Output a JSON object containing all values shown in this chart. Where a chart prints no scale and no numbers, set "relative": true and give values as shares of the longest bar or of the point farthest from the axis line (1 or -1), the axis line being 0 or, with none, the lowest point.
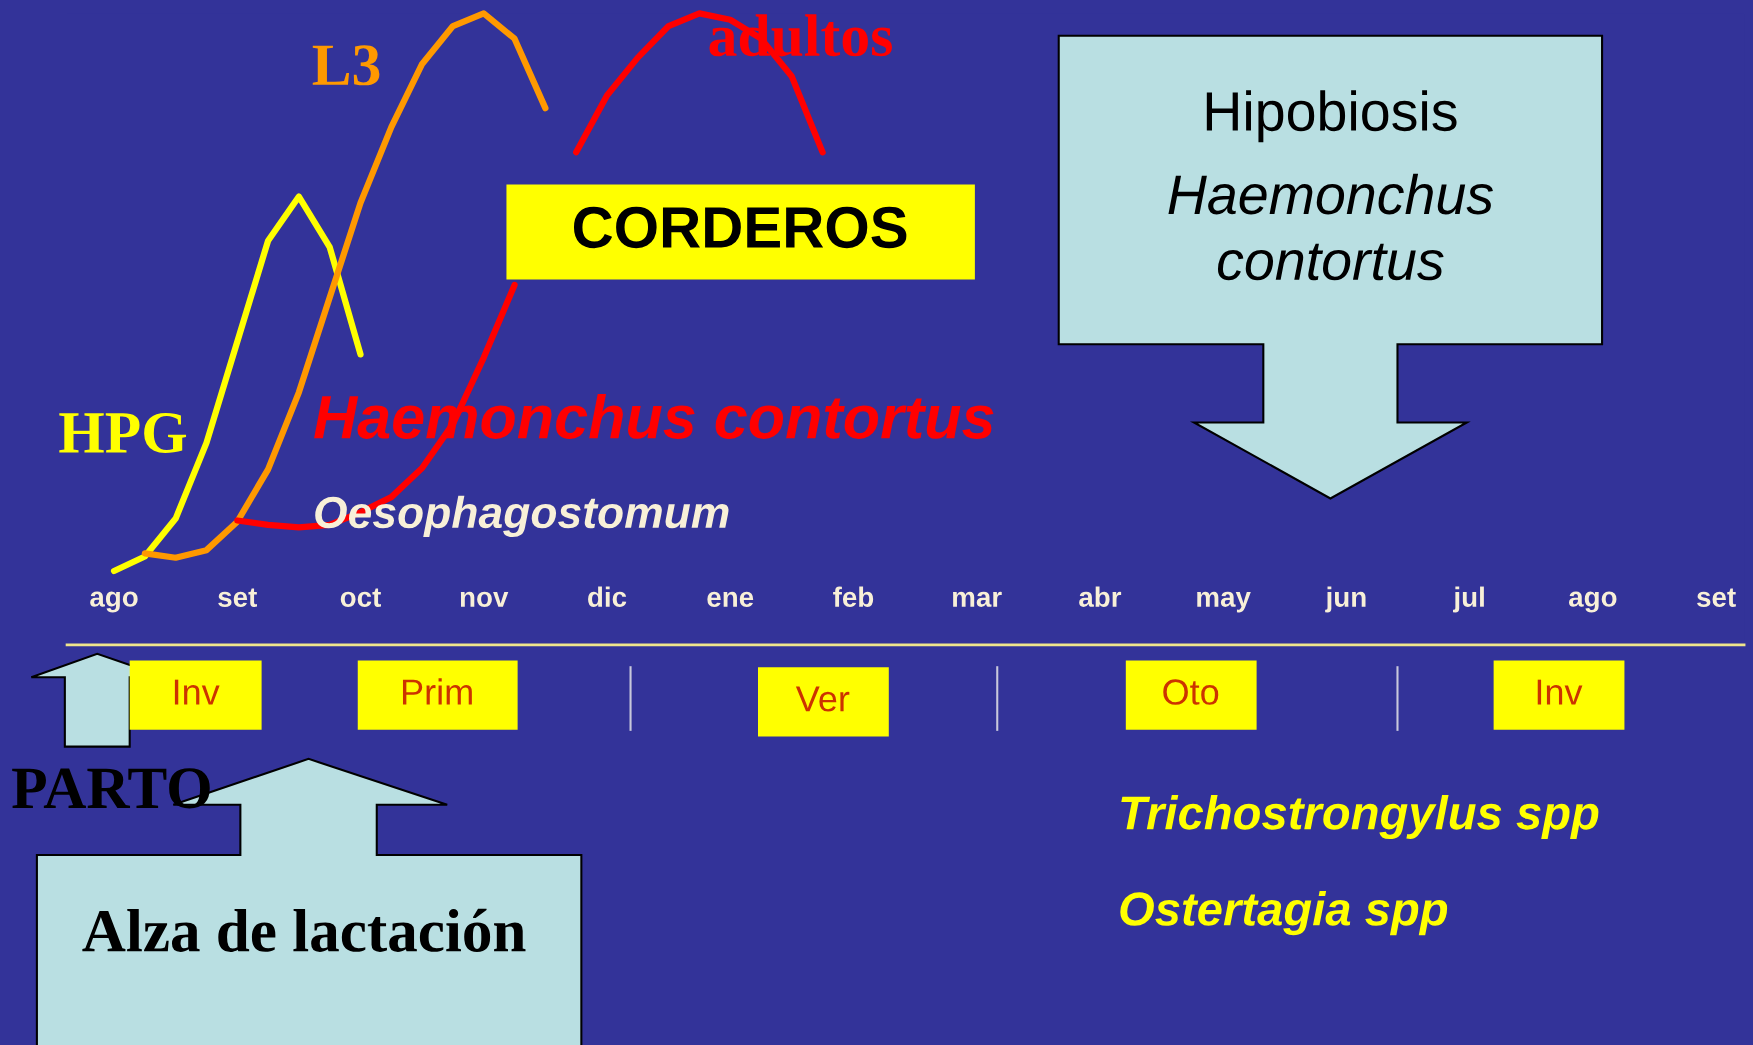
{
  "chart_data": {
    "type": "line",
    "relative": true,
    "legend": false,
    "grid": false,
    "marker": "none",
    "line_style": "solid",
    "categories": [
      "ago",
      null,
      null,
      null,
      "set",
      null,
      null,
      null,
      "oct",
      null,
      null,
      null,
      "nov",
      null,
      null,
      null,
      "dic",
      null,
      null,
      null,
      "ene",
      null,
      null,
      null,
      "feb",
      null,
      null,
      null,
      "mar",
      null,
      null,
      null,
      "abr",
      null,
      null,
      null,
      "may",
      null,
      null,
      null,
      "jun",
      null,
      null,
      null,
      "jul",
      null,
      null,
      null,
      "ago",
      null,
      null,
      null,
      "set"
    ],
    "series": [
      {
        "name": "HPG",
        "color": "#ffff00",
        "values": [
          0.117,
          0.14,
          0.2,
          0.32,
          0.48,
          0.64,
          0.71,
          0.63,
          0.46,
          null,
          null,
          null,
          null,
          null,
          null,
          null,
          null,
          null,
          null,
          null,
          null,
          null,
          null,
          null,
          null,
          null,
          null,
          null,
          null,
          null,
          null,
          null,
          null,
          null,
          null,
          null,
          null,
          null,
          null,
          null,
          null,
          null,
          null,
          null,
          null,
          null,
          null,
          null,
          null,
          null,
          null,
          null,
          null
        ]
      },
      {
        "name": "L3",
        "color": "#ff9900",
        "values": [
          null,
          0.145,
          0.138,
          0.15,
          0.195,
          0.278,
          0.4,
          0.55,
          0.7,
          0.82,
          0.92,
          0.98,
          1.0,
          0.96,
          0.85,
          null,
          null,
          null,
          null,
          null,
          null,
          null,
          null,
          null,
          null,
          null,
          null,
          null,
          null,
          null,
          null,
          null,
          null,
          null,
          null,
          null,
          null,
          null,
          null,
          null,
          null,
          null,
          null,
          null,
          null,
          null,
          null,
          null,
          null,
          null,
          null,
          null,
          null
        ]
      },
      {
        "name": "adultos",
        "color": "#ff0000",
        "values": [
          null,
          null,
          null,
          null,
          0.197,
          0.19,
          0.186,
          0.19,
          0.21,
          0.234,
          0.28,
          0.35,
          0.455,
          0.57,
          null,
          0.78,
          0.87,
          0.93,
          0.98,
          1.0,
          0.99,
          0.96,
          0.9,
          0.78,
          null,
          null,
          null,
          null,
          null,
          null,
          null,
          null,
          null,
          null,
          null,
          null,
          null,
          null,
          null,
          null,
          null,
          null,
          null,
          null,
          null,
          null,
          null,
          null,
          null,
          null,
          null,
          null,
          null
        ]
      }
    ],
    "annotations": [
      "CORDEROS",
      "Haemonchus contortus",
      "Oesophagostomum",
      "Hipobiosis",
      "Haemonchus\ncontortus",
      "Inv",
      "Prim",
      "Ver",
      "Oto",
      "Inv",
      "PARTO",
      "Alza de lactación",
      "Trichostrongylus spp",
      "Ostertagia spp"
    ]
  }
}
